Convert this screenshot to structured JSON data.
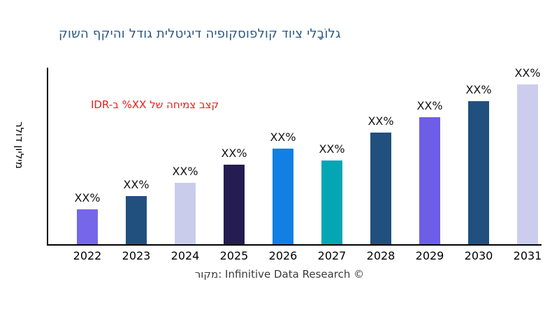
{
  "title": {
    "text": "קושה ףקיהו לדוג תילטיגיד היפוקסופלוק דויצ ילבָוֹלג",
    "color": "#2a5a85"
  },
  "annotation": {
    "text": "IDR-ב %XX לש החימצ בצק",
    "color": "#ed1c1c"
  },
  "axes": {
    "y_label": "רלוד ןוילימ",
    "x_baseline": "years",
    "grid": false,
    "legend": "none"
  },
  "source": {
    "text": "רוקמ: Infinitive Data Research ©"
  },
  "chart_data": {
    "type": "bar",
    "title": "קושה ףקיהו לדוג תילטיגיד היפוקסופלוק דויצ ילבָוֹלג",
    "ylabel": "רלוד ןוילימ",
    "xlabel": "",
    "categories": [
      "2022",
      "2023",
      "2024",
      "2025",
      "2026",
      "2027",
      "2028",
      "2029",
      "2030",
      "2031"
    ],
    "value_labels": [
      "XX%",
      "XX%",
      "XX%",
      "XX%",
      "XX%",
      "XX%",
      "XX%",
      "XX%",
      "XX%",
      "XX%"
    ],
    "values_relative": [
      50,
      69,
      88,
      114,
      137,
      120,
      160,
      182,
      205,
      229
    ],
    "bar_colors": [
      "#7667ea",
      "#21507e",
      "#caccec",
      "#251c51",
      "#117fe3",
      "#04a6b4",
      "#21507e",
      "#6e5de7",
      "#21507e",
      "#cccdee"
    ],
    "annotation": "IDR-ב %XX לש החימצ בצק",
    "grid": false,
    "legend_position": "none",
    "note": "values shown only as XX% placeholders; values_relative are bar heights in px read from the image"
  }
}
